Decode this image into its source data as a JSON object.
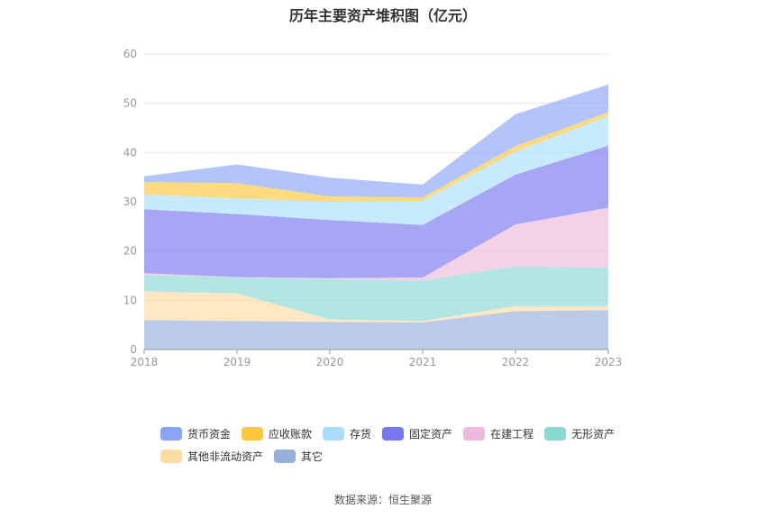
{
  "title": "历年主要资产堆积图（亿元）",
  "source": "数据来源：恒生聚源",
  "chart_data": {
    "type": "area",
    "stacked": true,
    "title": "历年主要资产堆积图（亿元）",
    "xlabel": "",
    "ylabel": "",
    "categories": [
      "2018",
      "2019",
      "2020",
      "2021",
      "2022",
      "2023"
    ],
    "ylim": [
      0,
      60
    ],
    "yticks": [
      0,
      10,
      20,
      30,
      40,
      50,
      60
    ],
    "grid": true,
    "legend": "bottom",
    "stack_order": [
      "其它",
      "其他非流动资产",
      "无形资产",
      "在建工程",
      "固定资产",
      "存货",
      "应收账款",
      "货币资金"
    ],
    "series": [
      {
        "name": "货币资金",
        "color": "#8aa5f7",
        "values": [
          1.2,
          3.8,
          3.8,
          2.6,
          6.5,
          5.6
        ]
      },
      {
        "name": "应收账款",
        "color": "#fbc73c",
        "values": [
          2.5,
          3.1,
          1.1,
          0.7,
          1.1,
          0.8
        ]
      },
      {
        "name": "存货",
        "color": "#a9defa",
        "values": [
          3.0,
          3.2,
          3.7,
          4.9,
          4.7,
          6.0
        ]
      },
      {
        "name": "固定资产",
        "color": "#7777ef",
        "values": [
          13.0,
          12.8,
          11.8,
          10.7,
          10.1,
          12.6
        ]
      },
      {
        "name": "在建工程",
        "color": "#ecbadc",
        "values": [
          0.3,
          0.1,
          0.2,
          0.6,
          8.5,
          12.2
        ]
      },
      {
        "name": "无形资产",
        "color": "#8ad8d4",
        "values": [
          3.4,
          3.2,
          8.2,
          8.2,
          8.1,
          7.8
        ]
      },
      {
        "name": "其他非流动资产",
        "color": "#fcdca3",
        "values": [
          5.8,
          5.6,
          0.5,
          0.3,
          1.0,
          0.8
        ]
      },
      {
        "name": "其它",
        "color": "#97afda",
        "values": [
          6.0,
          5.8,
          5.6,
          5.5,
          7.8,
          8.0
        ]
      }
    ]
  }
}
